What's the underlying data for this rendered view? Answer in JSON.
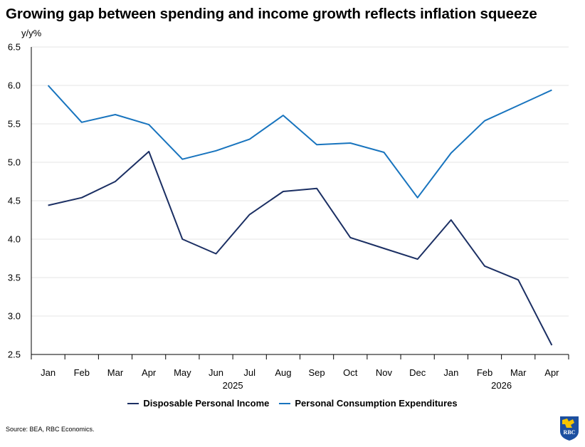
{
  "title": "Growing gap between spending and income growth reflects inflation squeeze",
  "y_unit": "y/y%",
  "source": "Source: BEA, RBC Economics.",
  "logo": {
    "icon": "rbc-lion-logo-icon",
    "text": "RBC"
  },
  "colors": {
    "income": "#1b2f63",
    "spending": "#1874be",
    "grid": "#e6e6e6",
    "axis": "#000000"
  },
  "chart_data": {
    "type": "line",
    "categories": [
      "Jan",
      "Feb",
      "Mar",
      "Apr",
      "May",
      "Jun",
      "Jul",
      "Aug",
      "Sep",
      "Oct",
      "Nov",
      "Dec",
      "Jan",
      "Feb",
      "Mar",
      "Apr"
    ],
    "year_labels": [
      {
        "label": "2025",
        "start": 0,
        "end": 11
      },
      {
        "label": "2026",
        "start": 12,
        "end": 15
      }
    ],
    "ylim": [
      2.5,
      6.5
    ],
    "yticks": [
      "2.5",
      "3.0",
      "3.5",
      "4.0",
      "4.5",
      "5.0",
      "5.5",
      "6.0",
      "6.5"
    ],
    "grid": true,
    "legend_position": "bottom",
    "series": [
      {
        "name": "Disposable Personal Income",
        "values": [
          4.44,
          4.54,
          4.75,
          5.14,
          4.0,
          3.81,
          4.32,
          4.62,
          4.66,
          4.02,
          3.88,
          3.74,
          4.25,
          3.65,
          3.47,
          2.62
        ]
      },
      {
        "name": "Personal Consumption Expenditures",
        "values": [
          6.0,
          5.52,
          5.62,
          5.49,
          5.04,
          5.15,
          5.3,
          5.61,
          5.23,
          5.25,
          5.13,
          4.54,
          5.12,
          5.54,
          5.74,
          5.94
        ]
      }
    ]
  }
}
